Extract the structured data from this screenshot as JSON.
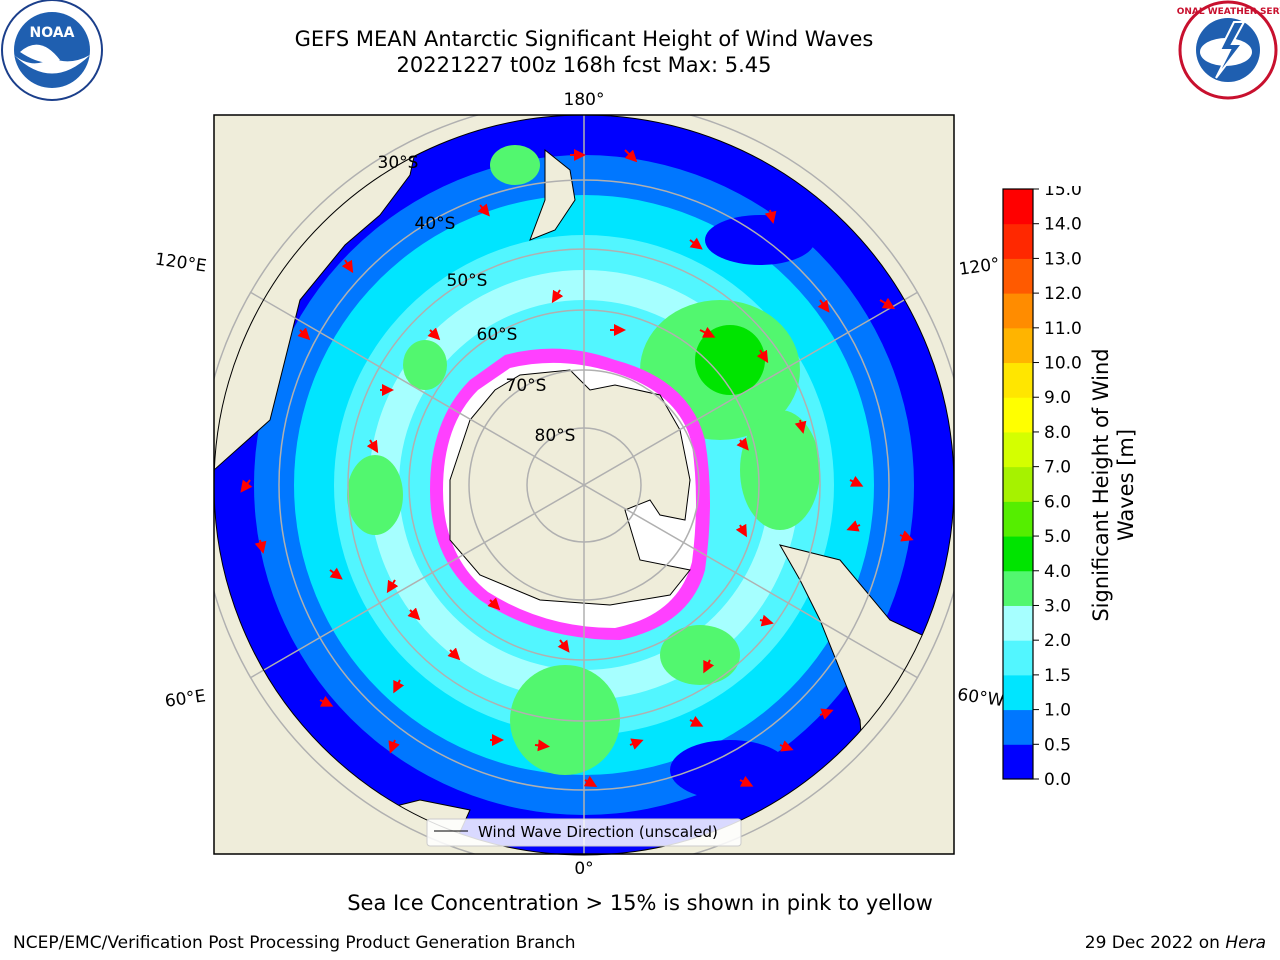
{
  "title": {
    "line1": "GEFS MEAN Antarctic Significant Height of Wind Waves",
    "line2": "20221227 t00z 168h fcst   Max: 5.45"
  },
  "subtitle": "Sea Ice Concentration > 15% is shown in pink to yellow",
  "footer": {
    "left": "NCEP/EMC/Verification Post Processing Product Generation Branch",
    "right_prefix": "29 Dec 2022 on ",
    "right_host": "Hera"
  },
  "logos": {
    "left": {
      "text": "NOAA",
      "icon": "noaa-logo"
    },
    "right": {
      "text": "NATIONAL WEATHER SERVICE",
      "icon": "nws-logo"
    }
  },
  "map": {
    "projection": "south-polar-stereographic",
    "longitude_labels": {
      "top": "180°",
      "bottom": "0°",
      "upper_left": "120°E",
      "upper_right": "120°",
      "lower_left": "60°E",
      "lower_right": "60°W"
    },
    "latitude_labels": [
      "30°S",
      "40°S",
      "50°S",
      "60°S",
      "70°S",
      "80°S"
    ],
    "legend_label": "Wind Wave Direction (unscaled)",
    "colors": {
      "land": "#efedda",
      "ocean_low": "#0000ff",
      "ice": "#ff40ff",
      "arrow": "#ff0000",
      "grid": "#b0b0b0"
    }
  },
  "colorbar": {
    "label_line1": "Significant Height of Wind",
    "label_line2": "Waves [m]",
    "ticks": [
      "0.0",
      "0.5",
      "1.0",
      "1.5",
      "2.0",
      "3.0",
      "4.0",
      "5.0",
      "6.0",
      "7.0",
      "8.0",
      "9.0",
      "10.0",
      "11.0",
      "12.0",
      "13.0",
      "14.0",
      "15.0"
    ],
    "colors": [
      "#0000ff",
      "#0077ff",
      "#00e5ff",
      "#52f6ff",
      "#a6ffff",
      "#52f76f",
      "#00e400",
      "#55ee00",
      "#a6f200",
      "#d4ff00",
      "#ffff00",
      "#ffe600",
      "#ffb400",
      "#ff8c00",
      "#ff5a00",
      "#ff2800",
      "#ff0000"
    ]
  }
}
